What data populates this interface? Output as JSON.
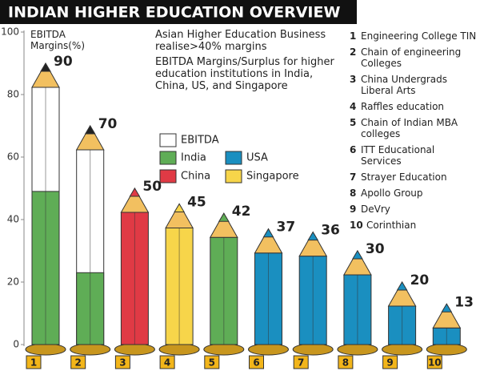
{
  "chart_data": {
    "type": "pencil-bar",
    "title": "INDIAN HIGHER EDUCATION OVERVIEW",
    "y_label": "EBITDA Margins(%)",
    "notes": [
      "Asian Higher Education Business realise>40% margins",
      "EBITDA Margins/Surplus for higher education institutions in India, China, US, and Singapore"
    ],
    "legend": [
      {
        "name": "EBITDA",
        "color": "#ffffff"
      },
      {
        "name": "India",
        "color": "#5fad56"
      },
      {
        "name": "USA",
        "color": "#1a8fc0"
      },
      {
        "name": "China",
        "color": "#e03a45"
      },
      {
        "name": "Singapore",
        "color": "#f7d54a"
      }
    ],
    "categories": [
      "1",
      "2",
      "3",
      "4",
      "5",
      "6",
      "7",
      "8",
      "9",
      "10"
    ],
    "values": [
      90,
      70,
      50,
      45,
      42,
      37,
      36,
      30,
      20,
      13
    ],
    "colors": [
      "#ffffff",
      "#ffffff",
      "#e03a45",
      "#f7d54a",
      "#5fad56",
      "#1a8fc0",
      "#1a8fc0",
      "#1a8fc0",
      "#1a8fc0",
      "#1a8fc0"
    ],
    "base_values": [
      49,
      23,
      null,
      null,
      null,
      null,
      null,
      null,
      null,
      null
    ],
    "base_color": "#5fad56",
    "institutions": [
      "Engineering College TIN",
      "Chain of engineering Colleges",
      "China Undergrads Liberal Arts",
      "Raffles education",
      "Chain of Indian MBA colleges",
      "ITT Educational Services",
      "Strayer Education",
      "Apollo Group",
      "DeVry",
      "Corinthian"
    ],
    "ylim": [
      0,
      100
    ],
    "yticks": [
      0,
      20,
      40,
      60,
      80,
      100
    ]
  }
}
